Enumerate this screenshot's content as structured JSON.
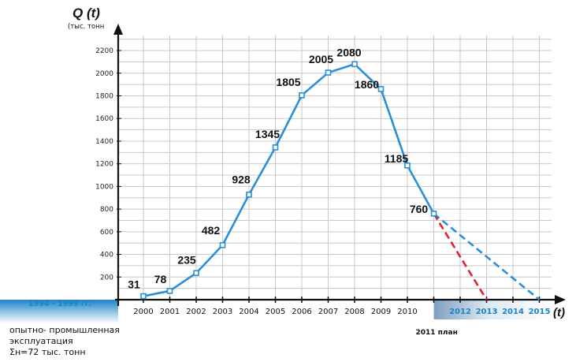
{
  "chart_data": {
    "type": "line",
    "title": "",
    "ylabel": "Q (t)",
    "yunit": "(тыс. тонн",
    "xlabel": "(t)",
    "ylim": [
      0,
      2300
    ],
    "yticks": [
      200,
      400,
      600,
      800,
      1000,
      1200,
      1400,
      1600,
      1800,
      2000,
      2200
    ],
    "grid": true,
    "x": [
      "2000",
      "2001",
      "2002",
      "2003",
      "2004",
      "2005",
      "2006",
      "2007",
      "2008",
      "2009",
      "2010",
      "2011"
    ],
    "x_plan": [
      "2012",
      "2013",
      "2014",
      "2015"
    ],
    "series": [
      {
        "values": [
          31,
          78,
          235,
          482,
          928,
          1345,
          1805,
          2005,
          2080,
          1860,
          1185,
          760
        ],
        "data_labels": [
          "31",
          "78",
          "235",
          "482",
          "928",
          "1345",
          "1805",
          "2005",
          "2080",
          "1860",
          "1185",
          "760"
        ],
        "color": "#2a8fd4",
        "style": "solid"
      },
      {
        "x": [
          "2011",
          "2015"
        ],
        "values": [
          760,
          0
        ],
        "color": "#2a8fd4",
        "style": "dashed"
      },
      {
        "x": [
          "2011",
          "2013"
        ],
        "values": [
          760,
          0
        ],
        "color": "#e0222a",
        "style": "dashed"
      }
    ],
    "annotations": {
      "band": "1994 - 1999 гг.",
      "plan": "2011 план"
    }
  },
  "note": {
    "line1": "опытно- промышленная",
    "line2": "эксплуатация",
    "line3": "Σн=72 тыс. тонн"
  }
}
